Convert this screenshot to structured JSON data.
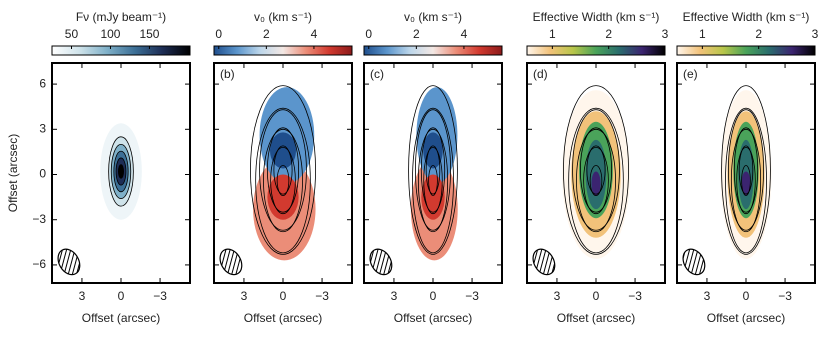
{
  "chart_data": [
    {
      "type": "image",
      "colorbar_label": "Fν (mJy beam⁻¹)",
      "clim": [
        25,
        202
      ],
      "cticks": [
        50,
        100,
        150
      ],
      "cmap": [
        "#ffffff",
        "#cfe3ea",
        "#7fb0c8",
        "#3c6f96",
        "#1d2d55",
        "#000000"
      ],
      "xlabel": "Offset (arcsec)",
      "ylabel": "Offset (arcsec)",
      "xlim": [
        5.3,
        -5.3
      ],
      "xticks": [
        3,
        0,
        {
          "value": -3,
          "label": "−3"
        }
      ],
      "ylim": [
        -7.2,
        7.4
      ],
      "yticks": [
        6,
        3,
        0,
        {
          "value": -3,
          "label": "−3"
        },
        {
          "value": -6,
          "label": "−6"
        }
      ]
    },
    {
      "type": "image",
      "panel_label": "(b)",
      "colorbar_label": "v₀ (km s⁻¹)",
      "clim": [
        -0.2,
        5.6
      ],
      "cticks": [
        0,
        2,
        4
      ],
      "cmap": [
        "#1f4e8c",
        "#5b95cc",
        "#bcd6ea",
        "#f3e8e4",
        "#eb8d78",
        "#d23a2f",
        "#8c1a1a"
      ],
      "xlabel": "Offset (arcsec)",
      "xlim": [
        5.3,
        -5.3
      ],
      "xticks": [
        3,
        0,
        {
          "value": -3,
          "label": "−3"
        }
      ],
      "ylim": [
        -7.2,
        7.4
      ]
    },
    {
      "type": "image",
      "panel_label": "(c)",
      "colorbar_label": "v₀ (km s⁻¹)",
      "clim": [
        -0.2,
        5.6
      ],
      "cticks": [
        0,
        2,
        4
      ],
      "cmap": [
        "#1f4e8c",
        "#5b95cc",
        "#bcd6ea",
        "#f3e8e4",
        "#eb8d78",
        "#d23a2f",
        "#8c1a1a"
      ],
      "xlabel": "Offset (arcsec)",
      "xlim": [
        5.3,
        -5.3
      ],
      "xticks": [
        3,
        0,
        {
          "value": -3,
          "label": "−3"
        }
      ],
      "ylim": [
        -7.2,
        7.4
      ]
    },
    {
      "type": "image",
      "panel_label": "(d)",
      "colorbar_label": "Effective Width (km s⁻¹)",
      "clim": [
        0.55,
        3.0
      ],
      "cticks": [
        1,
        2,
        3
      ],
      "cmap": [
        "#fff6ec",
        "#f2c27a",
        "#b9c64a",
        "#4aa35a",
        "#2a6d6d",
        "#3b2470",
        "#000000"
      ],
      "xlabel": "Offset (arcsec)",
      "xlim": [
        5.3,
        -5.3
      ],
      "xticks": [
        3,
        0,
        {
          "value": -3,
          "label": "−3"
        }
      ],
      "ylim": [
        -7.2,
        7.4
      ]
    },
    {
      "type": "image",
      "panel_label": "(e)",
      "colorbar_label": "Effective Width (km s⁻¹)",
      "clim": [
        0.55,
        3.0
      ],
      "cticks": [
        1,
        2,
        3
      ],
      "cmap": [
        "#fff6ec",
        "#f2c27a",
        "#b9c64a",
        "#4aa35a",
        "#2a6d6d",
        "#3b2470",
        "#000000"
      ],
      "xlabel": "Offset (arcsec)",
      "xlim": [
        5.3,
        -5.3
      ],
      "xticks": [
        3,
        0,
        {
          "value": -3,
          "label": "−3"
        }
      ],
      "ylim": [
        -7.2,
        7.4
      ]
    }
  ]
}
